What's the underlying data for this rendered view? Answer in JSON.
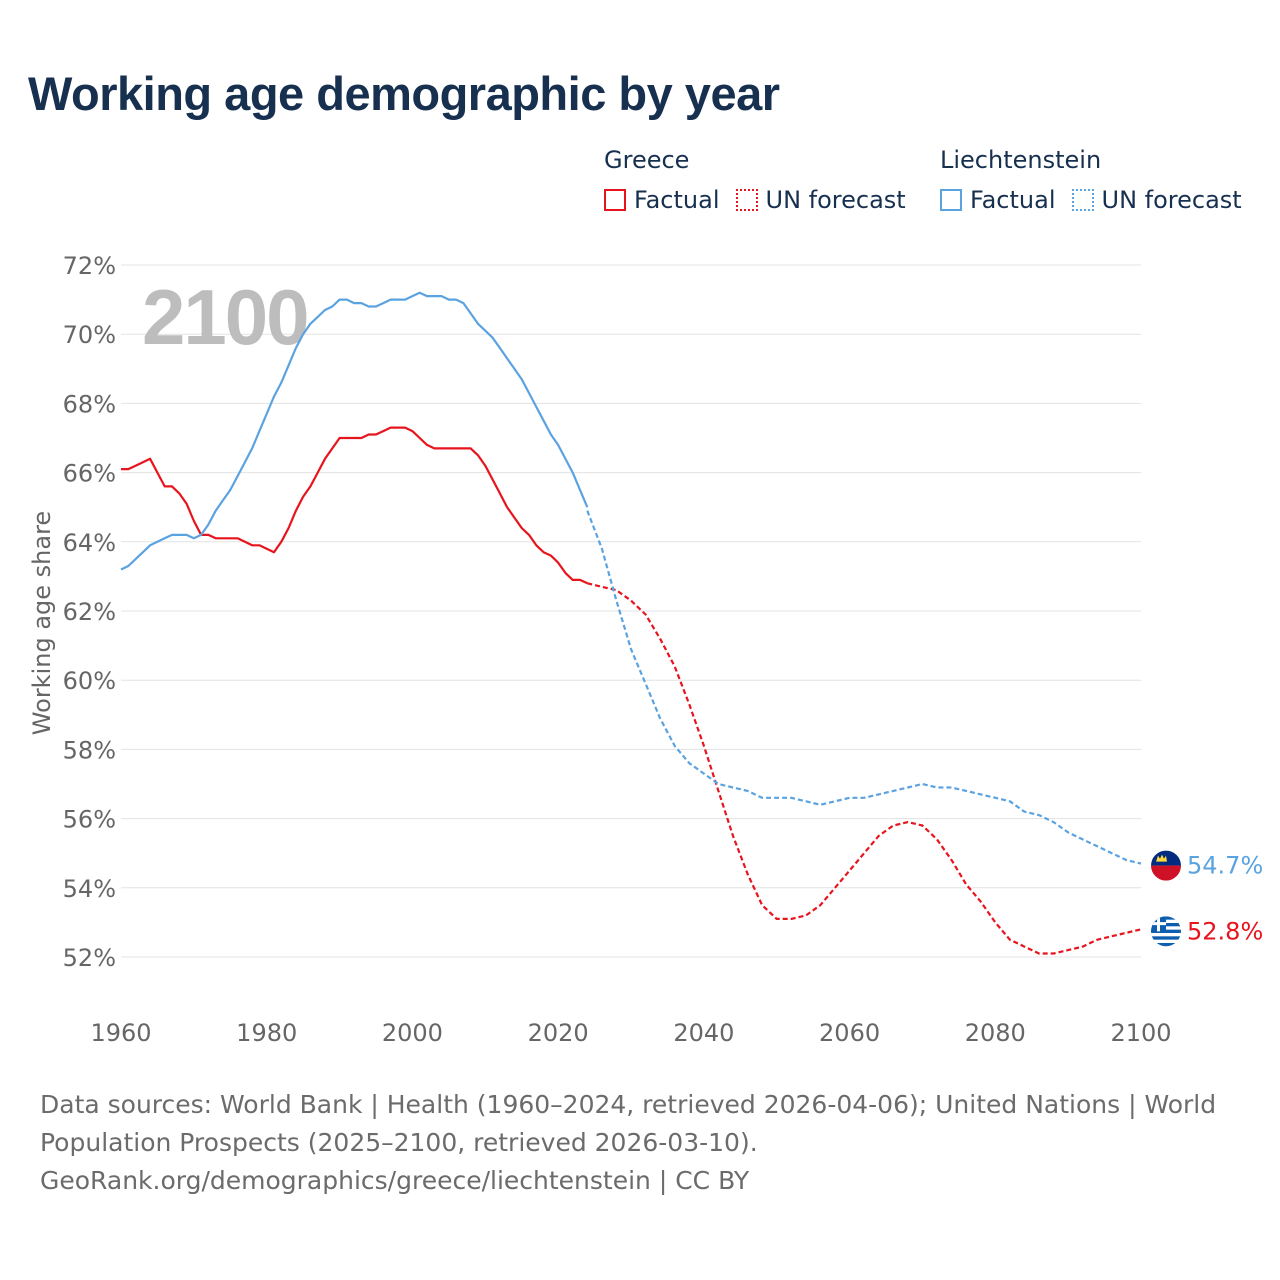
{
  "title": "Working age demographic by year",
  "legend": {
    "groups": [
      {
        "name": "Greece",
        "factual": "Factual",
        "forecast": "UN forecast",
        "color": "#e8141d"
      },
      {
        "name": "Liechtenstein",
        "factual": "Factual",
        "forecast": "UN forecast",
        "color": "#5ba3e0"
      }
    ]
  },
  "footer": {
    "sources": "Data sources: World Bank | Health (1960–2024, retrieved 2026-04-06); United Nations | World Population Prospects (2025–2100, retrieved 2026-03-10).",
    "credit": "GeoRank.org/demographics/greece/liechtenstein | CC BY"
  },
  "chart_data": {
    "type": "line",
    "title": "Working age demographic by year",
    "xlabel": "",
    "ylabel": "Working age share",
    "year_watermark": "2100",
    "xlim": [
      1960,
      2100
    ],
    "ylim": [
      51,
      72
    ],
    "x_ticks": [
      1960,
      1980,
      2000,
      2020,
      2040,
      2060,
      2080,
      2100
    ],
    "x_tick_labels": [
      "1960",
      "1980",
      "2000",
      "2020",
      "2040",
      "2060",
      "2080",
      "2100"
    ],
    "y_ticks": [
      52,
      54,
      56,
      58,
      60,
      62,
      64,
      66,
      68,
      70,
      72
    ],
    "y_tick_labels": [
      "52%",
      "54%",
      "56%",
      "58%",
      "60%",
      "62%",
      "64%",
      "66%",
      "68%",
      "70%",
      "72%"
    ],
    "grid": true,
    "series": [
      {
        "name": "Greece",
        "color": "#e8141d",
        "end_label": "52.8%",
        "factual": {
          "x": [
            1960,
            1961,
            1962,
            1963,
            1964,
            1965,
            1966,
            1967,
            1968,
            1969,
            1970,
            1971,
            1972,
            1973,
            1974,
            1975,
            1976,
            1977,
            1978,
            1979,
            1980,
            1981,
            1982,
            1983,
            1984,
            1985,
            1986,
            1987,
            1988,
            1989,
            1990,
            1991,
            1992,
            1993,
            1994,
            1995,
            1996,
            1997,
            1998,
            1999,
            2000,
            2001,
            2002,
            2003,
            2004,
            2005,
            2006,
            2007,
            2008,
            2009,
            2010,
            2011,
            2012,
            2013,
            2014,
            2015,
            2016,
            2017,
            2018,
            2019,
            2020,
            2021,
            2022,
            2023,
            2024
          ],
          "y": [
            66.1,
            66.1,
            66.2,
            66.3,
            66.4,
            66.0,
            65.6,
            65.6,
            65.4,
            65.1,
            64.6,
            64.2,
            64.2,
            64.1,
            64.1,
            64.1,
            64.1,
            64.0,
            63.9,
            63.9,
            63.8,
            63.7,
            64.0,
            64.4,
            64.9,
            65.3,
            65.6,
            66.0,
            66.4,
            66.7,
            67.0,
            67.0,
            67.0,
            67.0,
            67.1,
            67.1,
            67.2,
            67.3,
            67.3,
            67.3,
            67.2,
            67.0,
            66.8,
            66.7,
            66.7,
            66.7,
            66.7,
            66.7,
            66.7,
            66.5,
            66.2,
            65.8,
            65.4,
            65.0,
            64.7,
            64.4,
            64.2,
            63.9,
            63.7,
            63.6,
            63.4,
            63.1,
            62.9,
            62.9,
            62.8
          ]
        },
        "forecast": {
          "x": [
            2024,
            2026,
            2028,
            2030,
            2032,
            2034,
            2036,
            2038,
            2040,
            2042,
            2044,
            2046,
            2048,
            2050,
            2052,
            2054,
            2056,
            2058,
            2060,
            2062,
            2064,
            2066,
            2068,
            2070,
            2072,
            2074,
            2076,
            2078,
            2080,
            2082,
            2084,
            2086,
            2088,
            2090,
            2092,
            2094,
            2096,
            2098,
            2100
          ],
          "y": [
            62.8,
            62.7,
            62.6,
            62.3,
            61.9,
            61.2,
            60.4,
            59.3,
            58.1,
            56.8,
            55.5,
            54.4,
            53.5,
            53.1,
            53.1,
            53.2,
            53.5,
            54.0,
            54.5,
            55.0,
            55.5,
            55.8,
            55.9,
            55.8,
            55.4,
            54.8,
            54.1,
            53.6,
            53.0,
            52.5,
            52.3,
            52.1,
            52.1,
            52.2,
            52.3,
            52.5,
            52.6,
            52.7,
            52.8
          ]
        }
      },
      {
        "name": "Liechtenstein",
        "color": "#5ba3e0",
        "end_label": "54.7%",
        "factual": {
          "x": [
            1960,
            1961,
            1962,
            1963,
            1964,
            1965,
            1966,
            1967,
            1968,
            1969,
            1970,
            1971,
            1972,
            1973,
            1974,
            1975,
            1976,
            1977,
            1978,
            1979,
            1980,
            1981,
            1982,
            1983,
            1984,
            1985,
            1986,
            1987,
            1988,
            1989,
            1990,
            1991,
            1992,
            1993,
            1994,
            1995,
            1996,
            1997,
            1998,
            1999,
            2000,
            2001,
            2002,
            2003,
            2004,
            2005,
            2006,
            2007,
            2008,
            2009,
            2010,
            2011,
            2012,
            2013,
            2014,
            2015,
            2016,
            2017,
            2018,
            2019,
            2020,
            2021,
            2022,
            2023,
            2024
          ],
          "y": [
            63.2,
            63.3,
            63.5,
            63.7,
            63.9,
            64.0,
            64.1,
            64.2,
            64.2,
            64.2,
            64.1,
            64.2,
            64.5,
            64.9,
            65.2,
            65.5,
            65.9,
            66.3,
            66.7,
            67.2,
            67.7,
            68.2,
            68.6,
            69.1,
            69.6,
            70.0,
            70.3,
            70.5,
            70.7,
            70.8,
            71.0,
            71.0,
            70.9,
            70.9,
            70.8,
            70.8,
            70.9,
            71.0,
            71.0,
            71.0,
            71.1,
            71.2,
            71.1,
            71.1,
            71.1,
            71.0,
            71.0,
            70.9,
            70.6,
            70.3,
            70.1,
            69.9,
            69.6,
            69.3,
            69.0,
            68.7,
            68.3,
            67.9,
            67.5,
            67.1,
            66.8,
            66.4,
            66.0,
            65.5,
            65.0
          ]
        },
        "forecast": {
          "x": [
            2024,
            2026,
            2028,
            2030,
            2032,
            2034,
            2036,
            2038,
            2040,
            2042,
            2044,
            2046,
            2048,
            2050,
            2052,
            2054,
            2056,
            2058,
            2060,
            2062,
            2064,
            2066,
            2068,
            2070,
            2072,
            2074,
            2076,
            2078,
            2080,
            2082,
            2084,
            2086,
            2088,
            2090,
            2092,
            2094,
            2096,
            2098,
            2100
          ],
          "y": [
            64.9,
            63.8,
            62.3,
            60.9,
            59.9,
            58.9,
            58.1,
            57.6,
            57.3,
            57.0,
            56.9,
            56.8,
            56.6,
            56.6,
            56.6,
            56.5,
            56.4,
            56.5,
            56.6,
            56.6,
            56.7,
            56.8,
            56.9,
            57.0,
            56.9,
            56.9,
            56.8,
            56.7,
            56.6,
            56.5,
            56.2,
            56.1,
            55.9,
            55.6,
            55.4,
            55.2,
            55.0,
            54.8,
            54.7
          ]
        }
      }
    ]
  }
}
